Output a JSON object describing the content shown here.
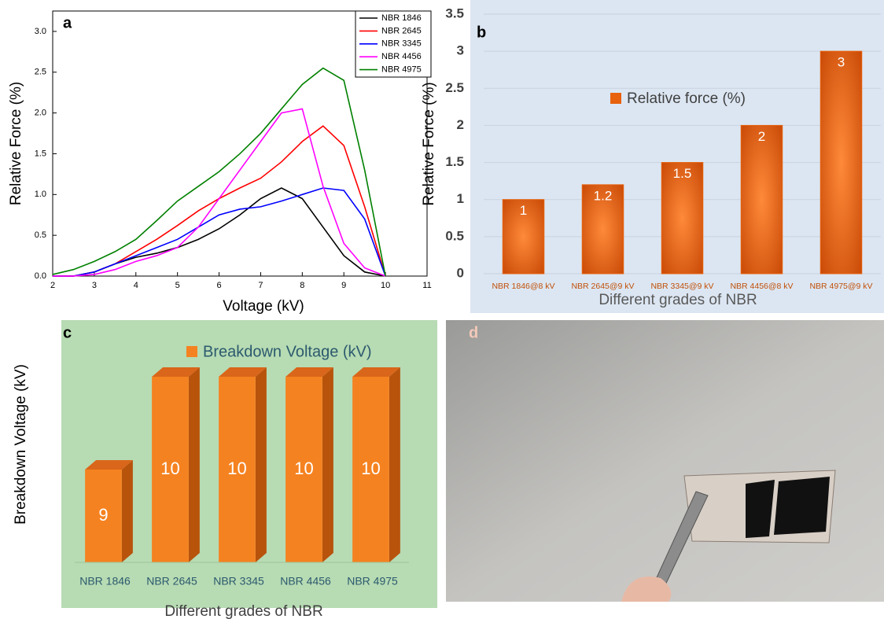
{
  "chart_data": [
    {
      "type": "line",
      "panel": "a",
      "x_label": "Voltage (kV)",
      "y_label": "Relative Force (%)",
      "x": [
        2,
        2.5,
        3,
        3.5,
        4,
        4.5,
        5,
        5.5,
        6,
        6.5,
        7,
        7.5,
        8,
        8.5,
        9,
        9.5,
        10
      ],
      "series": [
        {
          "name": "NBR 1846",
          "color": "#000000",
          "values": [
            0,
            0,
            0.05,
            0.15,
            0.23,
            0.28,
            0.35,
            0.45,
            0.58,
            0.75,
            0.95,
            1.08,
            0.95,
            0.6,
            0.25,
            0.05,
            0
          ]
        },
        {
          "name": "NBR 2645",
          "color": "#ff0000",
          "values": [
            0,
            0,
            0.05,
            0.15,
            0.3,
            0.45,
            0.62,
            0.8,
            0.95,
            1.08,
            1.2,
            1.4,
            1.65,
            1.84,
            1.6,
            0.85,
            0
          ]
        },
        {
          "name": "NBR 3345",
          "color": "#0000ff",
          "values": [
            0,
            0,
            0.05,
            0.15,
            0.25,
            0.35,
            0.45,
            0.6,
            0.75,
            0.82,
            0.85,
            0.92,
            1.0,
            1.08,
            1.05,
            0.7,
            0
          ]
        },
        {
          "name": "NBR 4456",
          "color": "#ff00ff",
          "values": [
            0,
            0,
            0.02,
            0.08,
            0.18,
            0.25,
            0.35,
            0.6,
            0.95,
            1.3,
            1.65,
            2.0,
            2.05,
            1.1,
            0.4,
            0.1,
            0
          ]
        },
        {
          "name": "NBR 4975",
          "color": "#008000",
          "values": [
            0.02,
            0.08,
            0.18,
            0.3,
            0.45,
            0.68,
            0.92,
            1.1,
            1.28,
            1.5,
            1.75,
            2.05,
            2.35,
            2.55,
            2.4,
            1.3,
            0
          ]
        }
      ],
      "xlim": [
        2,
        11
      ],
      "xticks": [
        2,
        3,
        4,
        5,
        6,
        7,
        8,
        9,
        10,
        11
      ],
      "ylim": [
        0,
        3.25
      ],
      "yticks": [
        {
          "value": 0,
          "label": "0.0"
        },
        0.5,
        {
          "value": 1,
          "label": "1.0"
        },
        1.5,
        {
          "value": 2,
          "label": "2.0"
        },
        2.5,
        {
          "value": 3,
          "label": "3.0"
        }
      ],
      "legend": "top-right"
    },
    {
      "type": "bar",
      "panel": "b",
      "x_label": "Different grades of NBR",
      "y_label": "Relative Force (%)",
      "categories": [
        "NBR 1846@8 kV",
        "NBR 2645@9 kV",
        "NBR 3345@9 kV",
        "NBR 4456@8 kV",
        "NBR 4975@9 kV"
      ],
      "series": [
        {
          "name": "Relative force (%)",
          "color": "#e8610c",
          "values": [
            1,
            1.2,
            1.5,
            2,
            3
          ]
        }
      ],
      "ylim": [
        0,
        3.5
      ],
      "yticks": [
        0,
        0.5,
        1,
        1.5,
        2,
        2.5,
        3,
        3.5
      ],
      "grid": true,
      "background": "#dce6f2"
    },
    {
      "type": "bar",
      "panel": "c",
      "x_label": "Different grades of NBR",
      "y_label": "Breakdown Voltage (kV)",
      "categories": [
        "NBR 1846",
        "NBR 2645",
        "NBR 3345",
        "NBR 4456",
        "NBR 4975"
      ],
      "series": [
        {
          "name": "Breakdown Voltage (kV)",
          "color": "#f58220",
          "values": [
            9,
            10,
            10,
            10,
            10
          ]
        }
      ],
      "ylim": [
        8,
        10.5
      ],
      "three_d": true,
      "background": "#b7dbb3"
    }
  ],
  "photo": {
    "panel": "d"
  }
}
